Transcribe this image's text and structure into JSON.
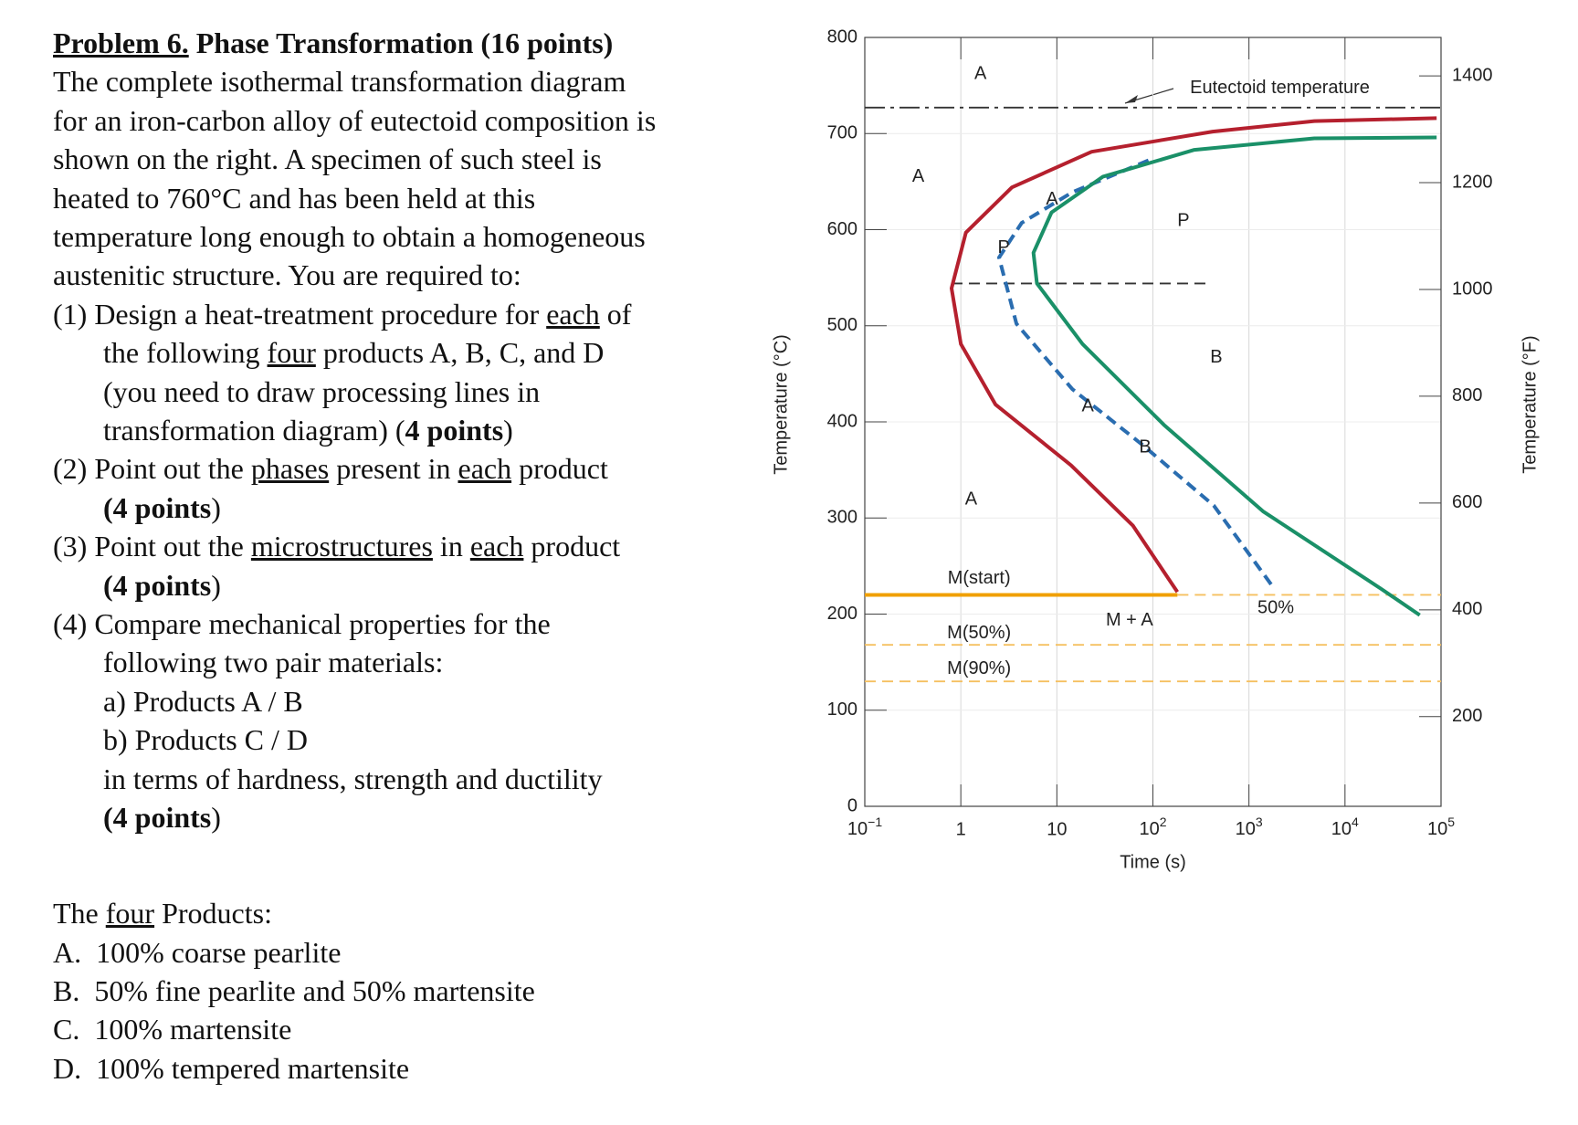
{
  "problem": {
    "label": "Problem 6.",
    "title": " Phase Transformation (16 points)",
    "lines": [
      {
        "segs": [
          {
            "t": "The complete isothermal transformation diagram"
          }
        ]
      },
      {
        "segs": [
          {
            "t": "for an iron-carbon alloy of eutectoid composition is"
          }
        ]
      },
      {
        "segs": [
          {
            "t": "shown on the right. A specimen of such steel is"
          }
        ]
      },
      {
        "segs": [
          {
            "t": "heated to 760°C and has been held at this"
          }
        ]
      },
      {
        "segs": [
          {
            "t": "temperature long enough to obtain a homogeneous"
          }
        ]
      },
      {
        "segs": [
          {
            "t": "austenitic structure. You are required to:"
          }
        ]
      },
      {
        "segs": [
          {
            "t": "(1) Design a heat-treatment procedure for "
          },
          {
            "t": "each",
            "s": "u"
          },
          {
            "t": " of"
          }
        ]
      },
      {
        "indent": true,
        "segs": [
          {
            "t": "the following "
          },
          {
            "t": "four",
            "s": "u"
          },
          {
            "t": " products A, B, C, and D"
          }
        ]
      },
      {
        "indent": true,
        "segs": [
          {
            "t": "(you need to draw processing lines in"
          }
        ]
      },
      {
        "indent": true,
        "segs": [
          {
            "t": "transformation diagram) ("
          },
          {
            "t": "4 points",
            "s": "b"
          },
          {
            "t": ")"
          }
        ]
      },
      {
        "segs": [
          {
            "t": "(2) Point out the "
          },
          {
            "t": "phases",
            "s": "u"
          },
          {
            "t": " present in "
          },
          {
            "t": "each",
            "s": "u"
          },
          {
            "t": " product"
          }
        ]
      },
      {
        "indent": true,
        "segs": [
          {
            "t": "(4 points",
            "s": "b"
          },
          {
            "t": ")"
          }
        ]
      },
      {
        "segs": [
          {
            "t": "(3) Point out the "
          },
          {
            "t": "microstructures",
            "s": "u"
          },
          {
            "t": " in "
          },
          {
            "t": "each",
            "s": "u"
          },
          {
            "t": " product"
          }
        ]
      },
      {
        "indent": true,
        "segs": [
          {
            "t": "(4 points",
            "s": "b"
          },
          {
            "t": ")"
          }
        ]
      },
      {
        "segs": [
          {
            "t": "(4) Compare mechanical properties for the"
          }
        ]
      },
      {
        "indent": true,
        "segs": [
          {
            "t": "following two pair materials:"
          }
        ]
      },
      {
        "indent": true,
        "segs": [
          {
            "t": "a) Products A / B"
          }
        ]
      },
      {
        "indent": true,
        "segs": [
          {
            "t": "b) Products C / D"
          }
        ]
      },
      {
        "indent": true,
        "segs": [
          {
            "t": "in terms of hardness, strength and ductility"
          }
        ]
      },
      {
        "indent": true,
        "segs": [
          {
            "t": "(4 points",
            "s": "b"
          },
          {
            "t": ")"
          }
        ]
      }
    ],
    "products_heading": [
      {
        "t": "The "
      },
      {
        "t": "four",
        "s": "u"
      },
      {
        "t": " Products:"
      }
    ],
    "products": [
      "A.  100% coarse pearlite",
      "B.  50% fine pearlite and 50% martensite",
      "C.  100% martensite",
      "D.  100% tempered martensite"
    ]
  },
  "chart_data": {
    "type": "line",
    "xlabel": "Time (s)",
    "ylabel": "Temperature (°C)",
    "y2label": "Temperature (°F)",
    "xscale": "log",
    "xlim": [
      0.1,
      100000
    ],
    "xticks": [
      {
        "value": 0.1,
        "label": "10",
        "exponent": "−1"
      },
      1,
      10,
      {
        "value": 100,
        "label": "10",
        "exponent": "2"
      },
      {
        "value": 1000,
        "label": "10",
        "exponent": "3"
      },
      {
        "value": 10000,
        "label": "10",
        "exponent": "4"
      },
      {
        "value": 100000,
        "label": "10",
        "exponent": "5"
      }
    ],
    "ylim": [
      0,
      800
    ],
    "yticks": [
      0,
      100,
      200,
      300,
      400,
      500,
      600,
      700,
      800
    ],
    "y2lim": [
      32,
      1472
    ],
    "y2ticks": [
      200,
      400,
      600,
      800,
      1000,
      1200,
      1400
    ],
    "grid": true,
    "series": [
      {
        "color": "#b5202e",
        "dash": "solid",
        "x": [
          180,
          62,
          14,
          2.3,
          1,
          0.8,
          1.13,
          3.4,
          23,
          420,
          4800,
          90000
        ],
        "values": [
          223,
          292,
          355,
          418,
          481,
          539,
          597,
          644,
          681,
          702,
          713,
          716
        ]
      },
      {
        "color": "#2a6db0",
        "dash": "dashed",
        "x": [
          1700,
          430,
          78,
          14.5,
          3.8,
          2.5,
          4.3,
          14.5,
          100
        ],
        "values": [
          231,
          313,
          376,
          434,
          502,
          571,
          607,
          639,
          674
        ]
      },
      {
        "color": "#1a9068",
        "dash": "solid",
        "x": [
          60000,
          24000,
          1400,
          130,
          18.5,
          6.2,
          5.7,
          8.8,
          30,
          270,
          4800,
          90000
        ],
        "values": [
          199,
          226,
          307,
          397,
          481,
          544,
          576,
          618,
          655,
          683,
          695,
          696
        ]
      }
    ],
    "hlines": [
      {
        "value": 727,
        "color": "#333333",
        "dash": "dashdot"
      },
      {
        "value": 220,
        "color": "#f0a000",
        "dash": "solid",
        "x": [
          0.1,
          180
        ]
      },
      {
        "value": 220,
        "color": "#f5c060",
        "dash": "dashed",
        "x": [
          180,
          100000
        ]
      },
      {
        "value": 168,
        "color": "#f5c060",
        "dash": "dashed"
      },
      {
        "value": 130,
        "color": "#f5c060",
        "dash": "dashed"
      },
      {
        "value": 544,
        "color": "#333333",
        "dash": "dashed",
        "x": [
          0.8,
          400
        ]
      }
    ],
    "annotations": [
      {
        "text": "A",
        "x": 1.6,
        "y": 762
      },
      {
        "text": "A",
        "x": 0.36,
        "y": 655
      },
      {
        "text": "A",
        "x": 1.28,
        "y": 319
      },
      {
        "text": "P",
        "x": 208,
        "y": 609
      },
      {
        "text": "B",
        "x": 457,
        "y": 467
      },
      {
        "text": "M + A",
        "x": 57,
        "y": 193
      },
      {
        "text": "50%",
        "x": 1900,
        "y": 206
      },
      {
        "text": "P",
        "x": 2.8,
        "y": 581
      },
      {
        "text": "A",
        "x": 8.9,
        "y": 631
      },
      {
        "text": "A",
        "x": 21,
        "y": 416
      },
      {
        "text": "B",
        "x": 83,
        "y": 373
      },
      {
        "text": "M(start)",
        "x": 1.55,
        "y": 237
      },
      {
        "text": "M(50%)",
        "x": 1.55,
        "y": 180
      },
      {
        "text": "M(90%)",
        "x": 1.55,
        "y": 143
      },
      {
        "text": "Eutectoid temperature",
        "x": 2100,
        "y": 747
      }
    ]
  }
}
